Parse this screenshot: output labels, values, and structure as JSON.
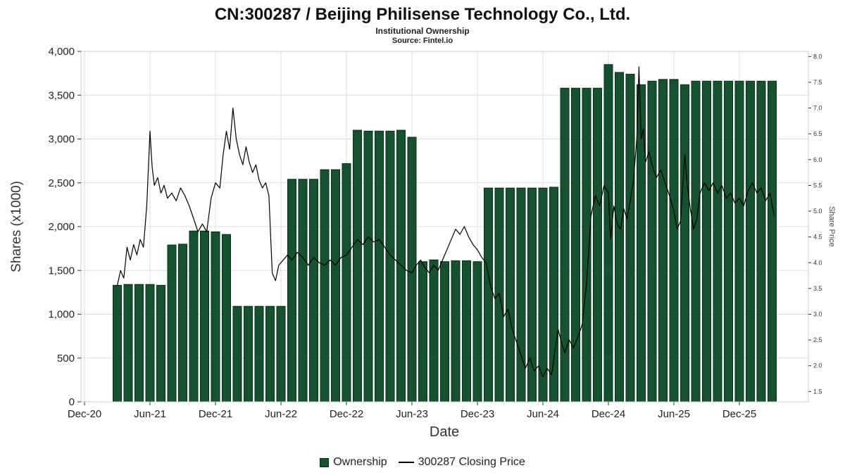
{
  "chart_data": {
    "type": "bar+line",
    "title": "CN:300287 / Beijing Philisense Technology Co., Ltd.",
    "subtitle": "Institutional Ownership",
    "source": "Source: Fintel.io",
    "xlabel": "Date",
    "ylabel_left": "Shares (x1000)",
    "ylabel_right": "Share Price",
    "x_ticks": [
      "Dec-20",
      "Jun-21",
      "Dec-21",
      "Jun-22",
      "Dec-22",
      "Jun-23",
      "Dec-23",
      "Jun-24",
      "Dec-24",
      "Jun-25",
      "Dec-25"
    ],
    "x_tick_months": [
      0,
      6,
      12,
      18,
      24,
      30,
      36,
      42,
      48,
      54,
      60
    ],
    "y_left_ticks": [
      "0",
      "500",
      "1,000",
      "1,500",
      "2,000",
      "2,500",
      "3,000",
      "3,500",
      "4,000"
    ],
    "y_left_values": [
      0,
      500,
      1000,
      1500,
      2000,
      2500,
      3000,
      3500,
      4000
    ],
    "y_left_range": [
      0,
      4000
    ],
    "y_right_ticks": [
      "1.5",
      "2.0",
      "2.5",
      "3.0",
      "3.5",
      "4.0",
      "4.5",
      "5.0",
      "5.5",
      "6.0",
      "6.5",
      "7.0",
      "7.5",
      "8.0"
    ],
    "y_right_range": [
      1.3,
      8.1
    ],
    "grid": true,
    "legend_position": "bottom-center",
    "legend": [
      {
        "label": "Ownership",
        "symbol": "bar-swatch",
        "color": "#14532D"
      },
      {
        "label": "300287 Closing Price",
        "symbol": "line",
        "color": "#000000"
      }
    ],
    "bar_color": "#14532D",
    "bar_edge_color": "#0A2F18",
    "line_color": "#000000",
    "grid_color": "#DDDDDD",
    "border_color": "#CCCCCC",
    "tick_color": "#333333",
    "ownership_bars": [
      [
        3,
        1330,
        "Mar-21"
      ],
      [
        4,
        1340,
        "Apr-21"
      ],
      [
        5,
        1340,
        "May-21"
      ],
      [
        6,
        1340,
        "Jun-21"
      ],
      [
        7,
        1330,
        "Jul-21"
      ],
      [
        8,
        1790,
        "Aug-21"
      ],
      [
        9,
        1800,
        "Sep-21"
      ],
      [
        10,
        1950,
        "Oct-21"
      ],
      [
        11,
        1950,
        "Nov-21"
      ],
      [
        12,
        1940,
        "Dec-21"
      ],
      [
        13,
        1910,
        "Jan-22"
      ],
      [
        14,
        1090,
        "Feb-22"
      ],
      [
        15,
        1090,
        "Mar-22"
      ],
      [
        16,
        1090,
        "Apr-22"
      ],
      [
        17,
        1090,
        "May-22"
      ],
      [
        18,
        1090,
        "Jun-22"
      ],
      [
        19,
        2540,
        "Jul-22"
      ],
      [
        20,
        2540,
        "Aug-22"
      ],
      [
        21,
        2540,
        "Sep-22"
      ],
      [
        22,
        2650,
        "Oct-22"
      ],
      [
        23,
        2650,
        "Nov-22"
      ],
      [
        24,
        2720,
        "Dec-22"
      ],
      [
        25,
        3100,
        "Jan-23"
      ],
      [
        26,
        3090,
        "Feb-23"
      ],
      [
        27,
        3090,
        "Mar-23"
      ],
      [
        28,
        3090,
        "Apr-23"
      ],
      [
        29,
        3100,
        "May-23"
      ],
      [
        30,
        3020,
        "Jun-23"
      ],
      [
        31,
        1600,
        "Jul-23"
      ],
      [
        32,
        1620,
        "Aug-23"
      ],
      [
        33,
        1600,
        "Sep-23"
      ],
      [
        34,
        1610,
        "Oct-23"
      ],
      [
        35,
        1610,
        "Nov-23"
      ],
      [
        36,
        1600,
        "Dec-23"
      ],
      [
        37,
        2440,
        "Jan-24"
      ],
      [
        38,
        2440,
        "Feb-24"
      ],
      [
        39,
        2440,
        "Mar-24"
      ],
      [
        40,
        2440,
        "Apr-24"
      ],
      [
        41,
        2440,
        "May-24"
      ],
      [
        42,
        2440,
        "Jun-24"
      ],
      [
        43,
        2450,
        "Jul-24"
      ],
      [
        44,
        3580,
        "Aug-24"
      ],
      [
        45,
        3580,
        "Sep-24"
      ],
      [
        46,
        3580,
        "Oct-24"
      ],
      [
        47,
        3580,
        "Nov-24"
      ],
      [
        48,
        3850,
        "Dec-24"
      ],
      [
        49,
        3760,
        "Jan-25"
      ],
      [
        50,
        3740,
        "Feb-25"
      ],
      [
        51,
        3620,
        "Mar-25"
      ],
      [
        52,
        3660,
        "Apr-25"
      ],
      [
        53,
        3680,
        "May-25"
      ],
      [
        54,
        3680,
        "Jun-25"
      ],
      [
        55,
        3620,
        "Jul-25"
      ],
      [
        56,
        3660,
        "Aug-25"
      ],
      [
        57,
        3660,
        "Sep-25"
      ],
      [
        58,
        3660,
        "Oct-25"
      ],
      [
        59,
        3660,
        "Nov-25"
      ],
      [
        60,
        3660,
        "Dec-25"
      ],
      [
        61,
        3660,
        "Jan-26"
      ],
      [
        62,
        3660,
        "Feb-26"
      ],
      [
        63,
        3660,
        "Mar-26"
      ]
    ],
    "price_line": [
      [
        3.0,
        3.55
      ],
      [
        3.3,
        3.85
      ],
      [
        3.6,
        3.7
      ],
      [
        3.9,
        4.3
      ],
      [
        4.2,
        4.05
      ],
      [
        4.5,
        4.35
      ],
      [
        4.8,
        4.15
      ],
      [
        5.1,
        4.45
      ],
      [
        5.4,
        4.3
      ],
      [
        5.7,
        5.1
      ],
      [
        6.0,
        6.55
      ],
      [
        6.2,
        5.85
      ],
      [
        6.4,
        5.5
      ],
      [
        6.7,
        5.65
      ],
      [
        7.0,
        5.35
      ],
      [
        7.3,
        5.5
      ],
      [
        7.6,
        5.25
      ],
      [
        8.0,
        5.35
      ],
      [
        8.4,
        5.2
      ],
      [
        8.8,
        5.45
      ],
      [
        9.2,
        5.3
      ],
      [
        9.6,
        5.1
      ],
      [
        10.0,
        4.85
      ],
      [
        10.4,
        4.6
      ],
      [
        10.8,
        4.75
      ],
      [
        11.2,
        4.6
      ],
      [
        11.6,
        5.25
      ],
      [
        12.0,
        5.55
      ],
      [
        12.4,
        5.45
      ],
      [
        12.7,
        6.1
      ],
      [
        13.0,
        6.55
      ],
      [
        13.3,
        6.2
      ],
      [
        13.6,
        7.0
      ],
      [
        13.9,
        6.4
      ],
      [
        14.2,
        6.1
      ],
      [
        14.5,
        5.9
      ],
      [
        14.8,
        6.25
      ],
      [
        15.1,
        5.95
      ],
      [
        15.4,
        5.75
      ],
      [
        15.7,
        5.9
      ],
      [
        16.0,
        5.6
      ],
      [
        16.3,
        5.45
      ],
      [
        16.6,
        5.55
      ],
      [
        16.9,
        5.3
      ],
      [
        17.2,
        3.8
      ],
      [
        17.5,
        3.65
      ],
      [
        17.8,
        3.95
      ],
      [
        18.2,
        4.05
      ],
      [
        18.6,
        4.15
      ],
      [
        19.0,
        4.05
      ],
      [
        19.5,
        4.2
      ],
      [
        20.0,
        4.1
      ],
      [
        20.5,
        3.95
      ],
      [
        21.0,
        4.1
      ],
      [
        21.5,
        4.0
      ],
      [
        22.0,
        3.95
      ],
      [
        22.5,
        4.05
      ],
      [
        23.0,
        3.95
      ],
      [
        23.5,
        4.1
      ],
      [
        24.0,
        4.15
      ],
      [
        24.5,
        4.3
      ],
      [
        25.0,
        4.45
      ],
      [
        25.5,
        4.35
      ],
      [
        26.0,
        4.5
      ],
      [
        26.5,
        4.4
      ],
      [
        27.0,
        4.45
      ],
      [
        27.5,
        4.3
      ],
      [
        28.0,
        4.15
      ],
      [
        28.5,
        4.05
      ],
      [
        29.0,
        3.95
      ],
      [
        29.5,
        3.85
      ],
      [
        30.0,
        3.8
      ],
      [
        30.4,
        3.95
      ],
      [
        30.8,
        4.05
      ],
      [
        31.2,
        3.9
      ],
      [
        31.6,
        3.8
      ],
      [
        32.0,
        3.95
      ],
      [
        32.4,
        3.85
      ],
      [
        32.8,
        4.05
      ],
      [
        33.2,
        4.25
      ],
      [
        33.6,
        4.45
      ],
      [
        34.0,
        4.65
      ],
      [
        34.4,
        4.55
      ],
      [
        34.8,
        4.7
      ],
      [
        35.2,
        4.5
      ],
      [
        35.6,
        4.35
      ],
      [
        36.0,
        4.25
      ],
      [
        36.4,
        4.1
      ],
      [
        36.8,
        4.0
      ],
      [
        37.2,
        3.55
      ],
      [
        37.6,
        3.3
      ],
      [
        38.0,
        3.4
      ],
      [
        38.4,
        2.95
      ],
      [
        38.8,
        3.1
      ],
      [
        39.2,
        2.7
      ],
      [
        39.6,
        2.45
      ],
      [
        40.0,
        2.2
      ],
      [
        40.4,
        1.95
      ],
      [
        40.8,
        2.15
      ],
      [
        41.2,
        1.9
      ],
      [
        41.6,
        2.0
      ],
      [
        42.0,
        1.78
      ],
      [
        42.4,
        1.95
      ],
      [
        42.8,
        1.82
      ],
      [
        43.1,
        2.3
      ],
      [
        43.4,
        2.7
      ],
      [
        43.7,
        2.45
      ],
      [
        44.0,
        2.25
      ],
      [
        44.4,
        2.5
      ],
      [
        44.8,
        2.35
      ],
      [
        45.2,
        2.55
      ],
      [
        45.6,
        2.8
      ],
      [
        46.0,
        3.6
      ],
      [
        46.4,
        4.9
      ],
      [
        46.8,
        5.3
      ],
      [
        47.2,
        5.1
      ],
      [
        47.6,
        5.5
      ],
      [
        48.0,
        5.35
      ],
      [
        48.2,
        4.45
      ],
      [
        48.5,
        5.1
      ],
      [
        48.8,
        4.75
      ],
      [
        49.1,
        4.65
      ],
      [
        49.4,
        5.05
      ],
      [
        49.7,
        4.85
      ],
      [
        50.0,
        5.2
      ],
      [
        50.3,
        5.6
      ],
      [
        50.6,
        6.4
      ],
      [
        50.8,
        7.8
      ],
      [
        51.0,
        6.4
      ],
      [
        51.2,
        6.6
      ],
      [
        51.4,
        5.95
      ],
      [
        51.7,
        6.15
      ],
      [
        52.0,
        5.9
      ],
      [
        52.4,
        5.65
      ],
      [
        52.8,
        5.8
      ],
      [
        53.2,
        5.55
      ],
      [
        53.6,
        5.3
      ],
      [
        54.0,
        5.0
      ],
      [
        54.3,
        4.65
      ],
      [
        54.6,
        4.8
      ],
      [
        55.0,
        6.1
      ],
      [
        55.2,
        5.55
      ],
      [
        55.5,
        5.05
      ],
      [
        55.8,
        4.65
      ],
      [
        56.1,
        4.85
      ],
      [
        56.4,
        5.35
      ],
      [
        56.8,
        5.55
      ],
      [
        57.2,
        5.4
      ],
      [
        57.6,
        5.55
      ],
      [
        58.0,
        5.35
      ],
      [
        58.4,
        5.5
      ],
      [
        58.8,
        5.25
      ],
      [
        59.2,
        5.35
      ],
      [
        59.6,
        5.15
      ],
      [
        60.0,
        5.25
      ],
      [
        60.4,
        5.1
      ],
      [
        60.8,
        5.4
      ],
      [
        61.2,
        5.55
      ],
      [
        61.6,
        5.35
      ],
      [
        62.0,
        5.45
      ],
      [
        62.4,
        5.2
      ],
      [
        62.8,
        5.35
      ],
      [
        63.2,
        4.9
      ]
    ]
  }
}
